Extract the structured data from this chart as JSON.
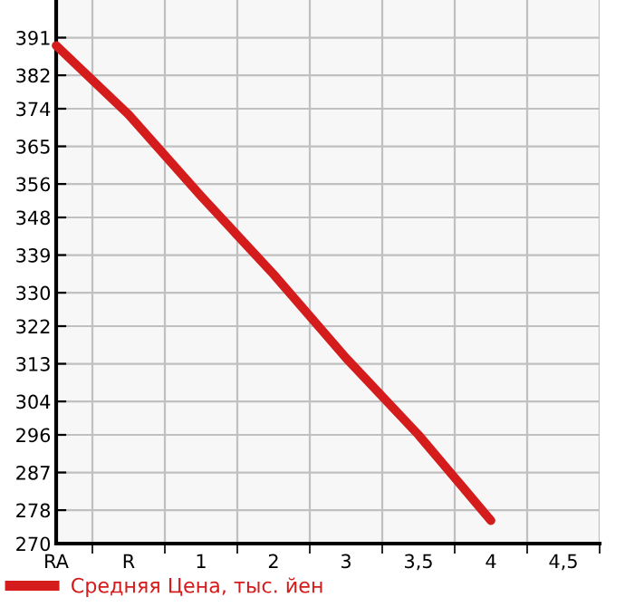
{
  "chart_data": {
    "type": "line",
    "categories": [
      "RA",
      "R",
      "1",
      "2",
      "3",
      "3,5",
      "4",
      "4,5"
    ],
    "series": [
      {
        "name": "Средняя Цена, тыс. йен",
        "color": "#d41c1c",
        "values": [
          389.1,
          372.6,
          353.1,
          334.4,
          314.4,
          296,
          275.5,
          null
        ]
      }
    ],
    "ylim": [
      270,
      400
    ],
    "yticks": [
      270,
      278,
      287,
      296,
      304,
      313,
      322,
      330,
      339,
      348,
      356,
      365,
      374,
      382,
      391
    ],
    "grid": true,
    "legend": "bottom left",
    "marker": "none",
    "line_style": "solid"
  }
}
